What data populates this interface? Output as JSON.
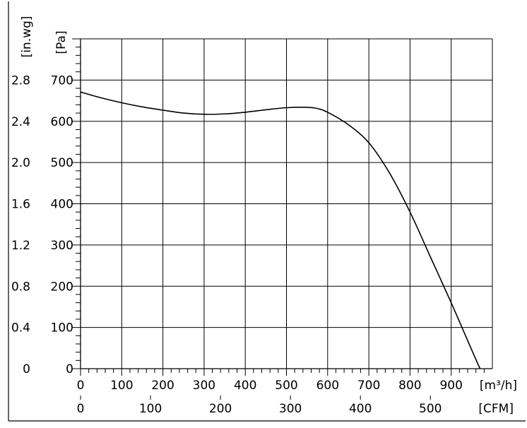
{
  "chart_data": {
    "type": "line",
    "title": "",
    "x_axis_primary": {
      "unit": "[m³/h]",
      "ticks": [
        0,
        100,
        200,
        300,
        400,
        500,
        600,
        700,
        800,
        900
      ],
      "range": [
        0,
        1000
      ]
    },
    "x_axis_secondary": {
      "unit": "[CFM]",
      "ticks": [
        0,
        100,
        200,
        300,
        400,
        500
      ]
    },
    "y_axis_primary": {
      "unit": "[Pa]",
      "ticks": [
        0,
        100,
        200,
        300,
        400,
        500,
        600,
        700
      ],
      "range": [
        0,
        800
      ]
    },
    "y_axis_secondary": {
      "unit": "[in.wg]",
      "ticks": [
        "0",
        "0.4",
        "0.8",
        "1.2",
        "1.6",
        "2.0",
        "2.4",
        "2.8"
      ]
    },
    "grid": true,
    "series": [
      {
        "x": [
          0,
          50,
          100,
          150,
          200,
          250,
          300,
          350,
          400,
          450,
          500,
          550,
          575,
          600,
          650,
          700,
          750,
          800,
          850,
          900,
          950,
          970
        ],
        "y": [
          671,
          657,
          645,
          635,
          627,
          620,
          617,
          618,
          622,
          628,
          633,
          634,
          631,
          622,
          592,
          548,
          475,
          380,
          270,
          160,
          45,
          0
        ]
      }
    ]
  }
}
